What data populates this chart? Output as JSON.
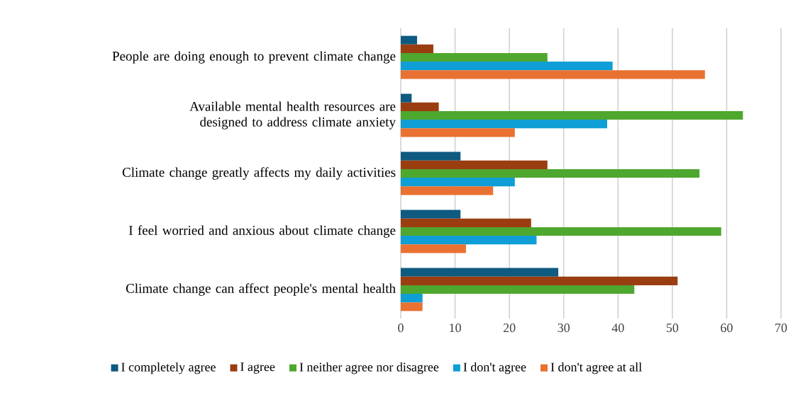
{
  "chart_data": {
    "type": "bar",
    "orientation": "horizontal",
    "categories": [
      "People are doing enough to prevent climate change",
      "Available mental health resources are designed to address climate anxiety",
      "Climate change greatly affects my daily activities",
      "I feel worried and anxious about climate change",
      "Climate change can affect people's mental health"
    ],
    "series": [
      {
        "name": "I completely agree",
        "color": "#0e5a80",
        "values": [
          3,
          2,
          11,
          11,
          29
        ]
      },
      {
        "name": "I agree",
        "color": "#9a3e12",
        "values": [
          6,
          7,
          27,
          24,
          51
        ]
      },
      {
        "name": "I neither agree nor disagree",
        "color": "#4ea72e",
        "values": [
          27,
          63,
          55,
          59,
          43
        ]
      },
      {
        "name": "I don't agree",
        "color": "#0f9ed5",
        "values": [
          39,
          38,
          21,
          25,
          4
        ]
      },
      {
        "name": "I don't agree at all",
        "color": "#e97132",
        "values": [
          56,
          21,
          17,
          12,
          4
        ]
      }
    ],
    "xlim": [
      0,
      70
    ],
    "xticks": [
      0,
      10,
      20,
      30,
      40,
      50,
      60,
      70
    ],
    "grid": "x",
    "legend": "bottom"
  }
}
